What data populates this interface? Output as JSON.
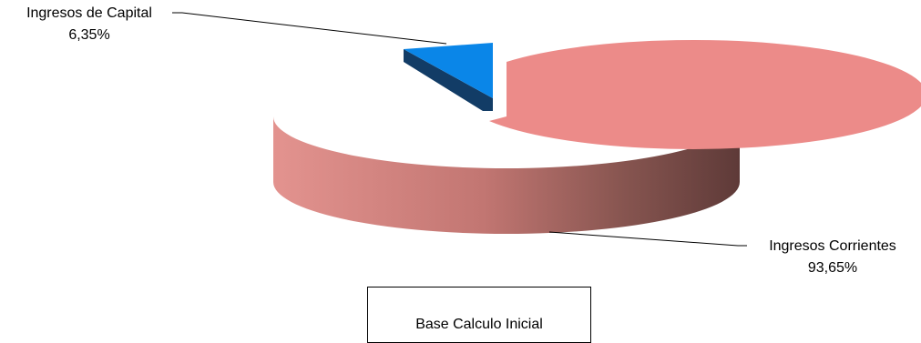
{
  "chart_data": {
    "type": "pie",
    "labels": [
      "Ingresos Corrientes",
      "Ingresos de Capital"
    ],
    "values": [
      93.65,
      6.35
    ],
    "value_labels": [
      "93,65%",
      "6,35%"
    ],
    "colors": [
      "#ec8b89",
      "#0a86e8"
    ],
    "exploded": "Ingresos de Capital",
    "style": "3d",
    "legend_title": "Base Calculo Inicial"
  }
}
